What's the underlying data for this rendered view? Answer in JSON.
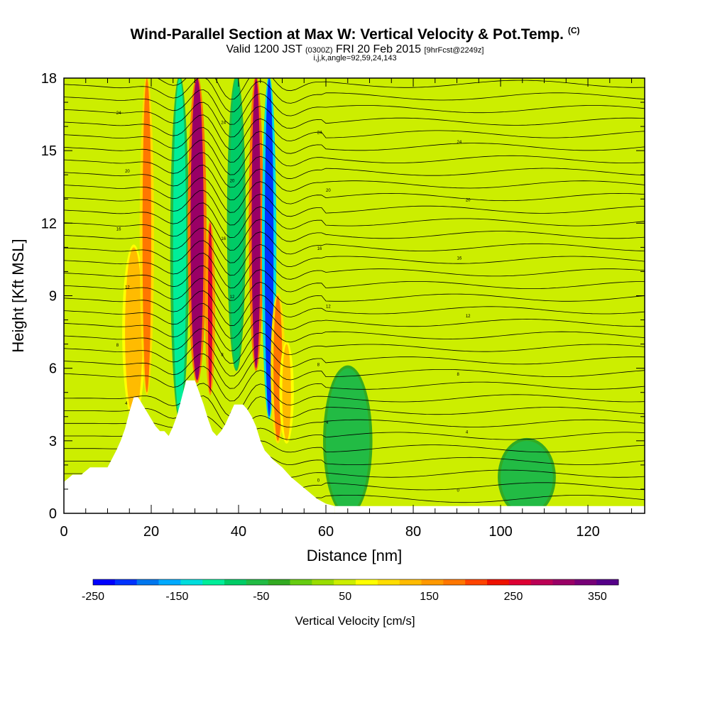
{
  "chart_data": {
    "type": "heatmap",
    "title": "Wind-Parallel Section at Max W: Vertical Velocity & Pot.Temp.",
    "title_mark": "(C)",
    "subtitle": {
      "valid": "Valid 1200 JST",
      "utc": "(0300Z)",
      "date": "FRI 20 Feb 2015",
      "forecast": "[9hrFcst@2249z]"
    },
    "params": "i,j,k,angle=92,59,24,143",
    "xlabel": "Distance [nm]",
    "ylabel": "Height [Kft MSL]",
    "xlim": [
      0,
      133
    ],
    "ylim": [
      0,
      18
    ],
    "x_ticks": [
      0,
      20,
      40,
      60,
      80,
      100,
      120
    ],
    "y_ticks": [
      0,
      3,
      6,
      9,
      12,
      15,
      18
    ],
    "colorbar": {
      "label": "Vertical Velocity [cm/s]",
      "min": -250,
      "max": 375,
      "step": 25,
      "tick_labels": [
        "-250",
        "-150",
        "-50",
        "50",
        "150",
        "250",
        "350"
      ],
      "colors": [
        "#0000ff",
        "#0033ff",
        "#0077ee",
        "#00aaff",
        "#00dddd",
        "#00ee99",
        "#00cc66",
        "#22bb44",
        "#33aa22",
        "#66cc11",
        "#99dd00",
        "#ccee00",
        "#ffff00",
        "#ffdd00",
        "#ffbb00",
        "#ff9900",
        "#ff7700",
        "#ff4400",
        "#ee1100",
        "#dd0033",
        "#bb0055",
        "#990066",
        "#770077",
        "#550088"
      ]
    },
    "vertical_velocity_cells": [
      {
        "x": [
          14,
          18
        ],
        "y": [
          4,
          11
        ],
        "w": 100
      },
      {
        "x": [
          18,
          20
        ],
        "y": [
          5,
          18
        ],
        "w": 150
      },
      {
        "x": [
          25,
          28
        ],
        "y": [
          4,
          18
        ],
        "w": -125
      },
      {
        "x": [
          29,
          32
        ],
        "y": [
          5.5,
          18
        ],
        "w": 275
      },
      {
        "x": [
          33,
          34
        ],
        "y": [
          5,
          12
        ],
        "w": 225
      },
      {
        "x": [
          38,
          41
        ],
        "y": [
          6,
          18
        ],
        "w": -100
      },
      {
        "x": [
          43,
          45
        ],
        "y": [
          6,
          18
        ],
        "w": 275
      },
      {
        "x": [
          46,
          48
        ],
        "y": [
          4,
          18
        ],
        "w": -225
      },
      {
        "x": [
          48,
          50
        ],
        "y": [
          3,
          9
        ],
        "w": 150
      },
      {
        "x": [
          50,
          52
        ],
        "y": [
          3,
          7
        ],
        "w": 100
      },
      {
        "x": [
          60,
          70
        ],
        "y": [
          0,
          6
        ],
        "w": -75
      },
      {
        "x": [
          100,
          112
        ],
        "y": [
          0,
          3
        ],
        "w": -75
      }
    ],
    "potential_temperature_labels": [
      "24",
      "20",
      "16",
      "12",
      "8",
      "4",
      "0"
    ],
    "terrain_profile": {
      "x": [
        0,
        2,
        4,
        6,
        8,
        10,
        12,
        13,
        14,
        15,
        16,
        17,
        18,
        19,
        20,
        21,
        22,
        23,
        24,
        25,
        26,
        27,
        28,
        29,
        30,
        31,
        32,
        33,
        34,
        35,
        36,
        37,
        38,
        39,
        40,
        41,
        42,
        43,
        44,
        45,
        46,
        47,
        48,
        50,
        52,
        54,
        56,
        58,
        60,
        62
      ],
      "height": [
        1.3,
        1.6,
        1.6,
        1.9,
        1.9,
        1.9,
        2.6,
        3.0,
        3.5,
        4.2,
        4.8,
        4.8,
        4.5,
        4.2,
        3.9,
        3.6,
        3.4,
        3.4,
        3.2,
        3.6,
        4.1,
        4.8,
        5.5,
        5.5,
        5.5,
        5.0,
        4.5,
        3.9,
        3.4,
        3.2,
        3.4,
        3.7,
        4.1,
        4.5,
        4.5,
        4.5,
        4.3,
        4.0,
        3.6,
        3.0,
        2.6,
        2.4,
        2.2,
        1.9,
        1.5,
        1.2,
        0.9,
        0.6,
        0.4,
        0.3
      ]
    }
  }
}
